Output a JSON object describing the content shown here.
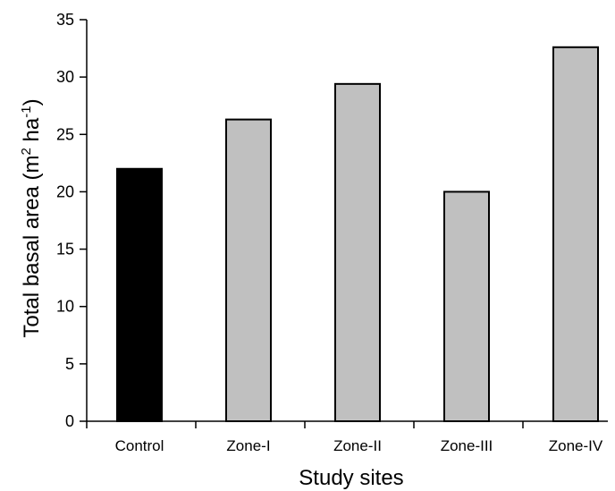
{
  "chart_data": {
    "type": "bar",
    "title": "",
    "xlabel": "Study sites",
    "ylabel": {
      "prefix": "Total basal area (m",
      "sup1": "2",
      "mid": " ha",
      "sup2": "-1",
      "suffix": ")"
    },
    "categories": [
      "Control",
      "Zone-I",
      "Zone-II",
      "Zone-III",
      "Zone-IV"
    ],
    "values": [
      22.0,
      26.3,
      29.4,
      20.0,
      32.6
    ],
    "bar_colors": [
      "#000000",
      "#c0c0c0",
      "#c0c0c0",
      "#c0c0c0",
      "#c0c0c0"
    ],
    "ylim": [
      0,
      35
    ],
    "yticks": [
      0,
      5,
      10,
      15,
      20,
      25,
      30,
      35
    ],
    "grid": false,
    "legend": "none"
  }
}
